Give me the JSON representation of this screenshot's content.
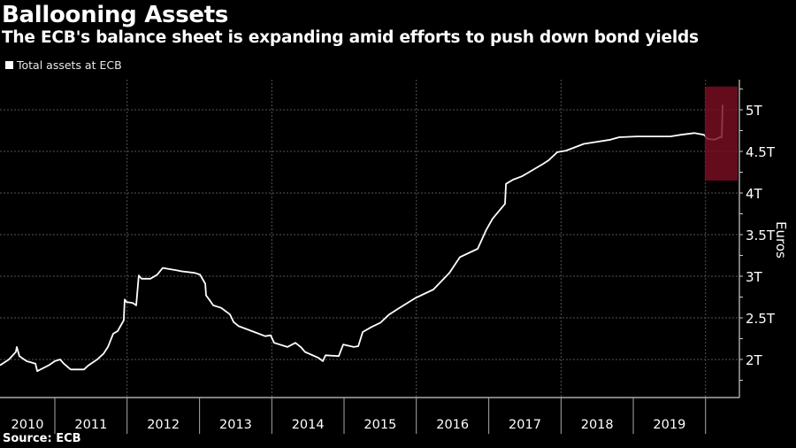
{
  "chart_data": {
    "type": "line",
    "title": "Ballooning Assets",
    "subtitle": "The ECB's balance sheet is expanding amid efforts to push down bond yields",
    "ylabel": "Euros",
    "xlabel": "",
    "source": "Source: ECB",
    "legend": {
      "placement": "top-left",
      "entries": [
        "Total assets at ECB"
      ]
    },
    "xlim": [
      "2010-03-30",
      "2020-06-20"
    ],
    "ylim": [
      1.54,
      5.35
    ],
    "y_unit": "trillion euros",
    "y_ticks": [
      {
        "value": 2,
        "label": "2T"
      },
      {
        "value": 2.5,
        "label": "2.5T"
      },
      {
        "value": 3,
        "label": "3T"
      },
      {
        "value": 3.5,
        "label": "3.5T"
      },
      {
        "value": 4,
        "label": "4T"
      },
      {
        "value": 4.5,
        "label": "4.5T"
      },
      {
        "value": 5,
        "label": "5T"
      }
    ],
    "x_tick_labels": [
      "2010",
      "2011",
      "2012",
      "2013",
      "2014",
      "2015",
      "2016",
      "2017",
      "2018",
      "2019"
    ],
    "grid": true,
    "colors": {
      "background": "#000000",
      "line": "#ffffff",
      "highlight": "#7a0f22",
      "grid": "#555555"
    },
    "highlight": {
      "x": [
        "2019-12-28",
        "2020-06-12"
      ],
      "y": [
        4.15,
        5.28
      ]
    },
    "series": [
      {
        "name": "Total assets at ECB",
        "points": [
          [
            "2010-03-30",
            1.93
          ],
          [
            "2010-05-14",
            2.0
          ],
          [
            "2010-06-18",
            2.09
          ],
          [
            "2010-06-23",
            2.15
          ],
          [
            "2010-07-06",
            2.04
          ],
          [
            "2010-08-11",
            1.98
          ],
          [
            "2010-09-25",
            1.95
          ],
          [
            "2010-10-04",
            1.86
          ],
          [
            "2010-12-01",
            1.93
          ],
          [
            "2011-01-01",
            1.98
          ],
          [
            "2011-01-28",
            2.0
          ],
          [
            "2011-02-15",
            1.95
          ],
          [
            "2011-03-22",
            1.88
          ],
          [
            "2011-05-28",
            1.88
          ],
          [
            "2011-06-20",
            1.93
          ],
          [
            "2011-08-03",
            2.0
          ],
          [
            "2011-09-04",
            2.07
          ],
          [
            "2011-09-26",
            2.15
          ],
          [
            "2011-10-23",
            2.31
          ],
          [
            "2011-11-14",
            2.34
          ],
          [
            "2011-12-15",
            2.47
          ],
          [
            "2011-12-20",
            2.72
          ],
          [
            "2011-12-29",
            2.69
          ],
          [
            "2012-01-29",
            2.68
          ],
          [
            "2012-02-16",
            2.65
          ],
          [
            "2012-02-29",
            3.01
          ],
          [
            "2012-03-14",
            2.97
          ],
          [
            "2012-04-28",
            2.97
          ],
          [
            "2012-06-02",
            3.02
          ],
          [
            "2012-06-29",
            3.1
          ],
          [
            "2012-09-09",
            3.07
          ],
          [
            "2012-10-01",
            3.06
          ],
          [
            "2012-12-07",
            3.04
          ],
          [
            "2013-01-03",
            3.02
          ],
          [
            "2013-01-30",
            2.91
          ],
          [
            "2013-02-03",
            2.77
          ],
          [
            "2013-02-25",
            2.7
          ],
          [
            "2013-03-11",
            2.65
          ],
          [
            "2013-04-20",
            2.62
          ],
          [
            "2013-06-04",
            2.54
          ],
          [
            "2013-06-22",
            2.45
          ],
          [
            "2013-07-18",
            2.4
          ],
          [
            "2013-09-23",
            2.34
          ],
          [
            "2013-11-29",
            2.28
          ],
          [
            "2013-12-26",
            2.29
          ],
          [
            "2014-01-13",
            2.2
          ],
          [
            "2014-03-21",
            2.15
          ],
          [
            "2014-04-30",
            2.2
          ],
          [
            "2014-05-27",
            2.15
          ],
          [
            "2014-06-18",
            2.09
          ],
          [
            "2014-08-24",
            2.02
          ],
          [
            "2014-09-16",
            1.98
          ],
          [
            "2014-09-29",
            2.05
          ],
          [
            "2014-12-05",
            2.04
          ],
          [
            "2014-12-28",
            2.18
          ],
          [
            "2015-02-19",
            2.15
          ],
          [
            "2015-03-14",
            2.16
          ],
          [
            "2015-04-05",
            2.33
          ],
          [
            "2015-05-20",
            2.39
          ],
          [
            "2015-07-03",
            2.44
          ],
          [
            "2015-08-17",
            2.54
          ],
          [
            "2015-10-01",
            2.61
          ],
          [
            "2015-12-29",
            2.74
          ],
          [
            "2016-03-27",
            2.84
          ],
          [
            "2016-06-16",
            3.04
          ],
          [
            "2016-08-08",
            3.23
          ],
          [
            "2016-11-06",
            3.33
          ],
          [
            "2016-12-20",
            3.56
          ],
          [
            "2017-01-20",
            3.69
          ],
          [
            "2017-03-24",
            3.87
          ],
          [
            "2017-03-29",
            4.11
          ],
          [
            "2017-05-03",
            4.16
          ],
          [
            "2017-06-17",
            4.2
          ],
          [
            "2017-07-09",
            4.23
          ],
          [
            "2017-10-02",
            4.35
          ],
          [
            "2017-10-29",
            4.39
          ],
          [
            "2017-12-13",
            4.49
          ],
          [
            "2018-01-27",
            4.51
          ],
          [
            "2018-04-26",
            4.59
          ],
          [
            "2018-09-07",
            4.64
          ],
          [
            "2018-10-22",
            4.67
          ],
          [
            "2019-01-19",
            4.68
          ],
          [
            "2019-04-18",
            4.68
          ],
          [
            "2019-07-08",
            4.68
          ],
          [
            "2019-08-30",
            4.7
          ],
          [
            "2019-11-05",
            4.72
          ],
          [
            "2019-12-24",
            4.7
          ],
          [
            "2020-01-11",
            4.65
          ],
          [
            "2020-02-16",
            4.64
          ],
          [
            "2020-03-14",
            4.67
          ],
          [
            "2020-03-23",
            4.67
          ],
          [
            "2020-03-27",
            5.06
          ]
        ]
      }
    ]
  }
}
